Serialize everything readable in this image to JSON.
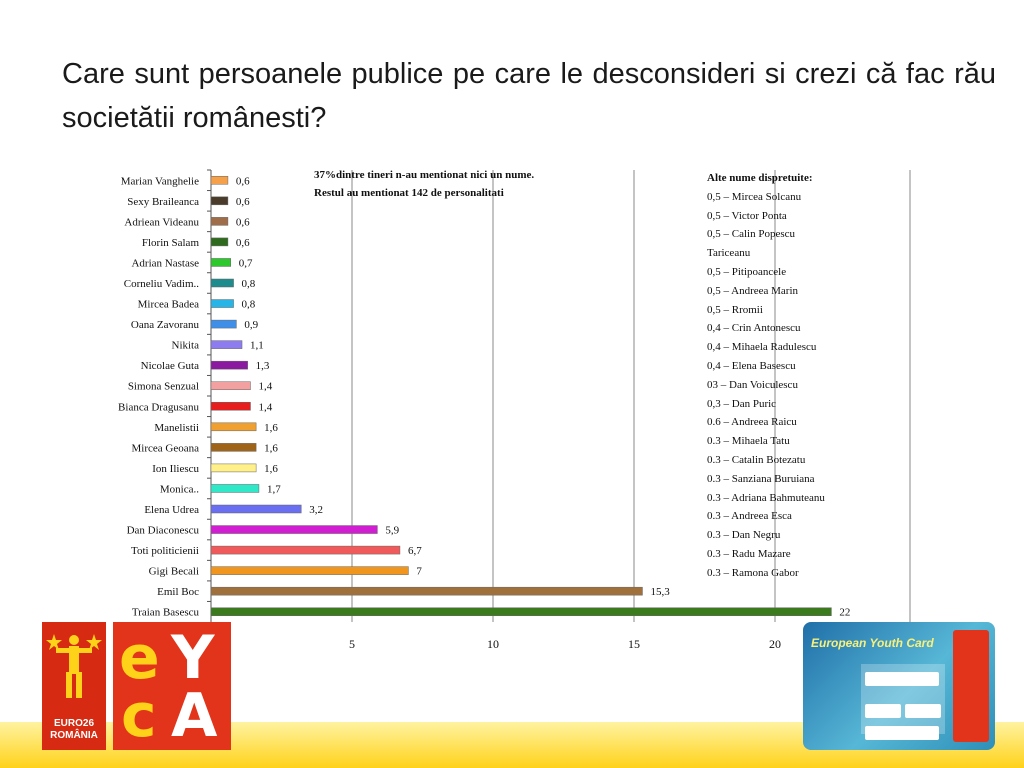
{
  "title": "Care sunt persoanele publice pe care le desconsideri si crezi că fac rău societătii românesti?",
  "chart_data": {
    "type": "bar",
    "orientation": "horizontal",
    "categories": [
      "Marian Vanghelie",
      "Sexy Braileanca",
      "Adriean Videanu",
      "Florin Salam",
      "Adrian Nastase",
      "Corneliu Vadim..",
      "Mircea Badea",
      "Oana Zavoranu",
      "Nikita",
      "Nicolae Guta",
      "Simona Senzual",
      "Bianca Dragusanu",
      "Manelistii",
      "Mircea Geoana",
      "Ion Iliescu",
      "Monica..",
      "Elena Udrea",
      "Dan Diaconescu",
      "Toti politicienii",
      "Gigi Becali",
      "Emil Boc",
      "Traian Basescu"
    ],
    "values": [
      0.6,
      0.6,
      0.6,
      0.6,
      0.7,
      0.8,
      0.8,
      0.9,
      1.1,
      1.3,
      1.4,
      1.4,
      1.6,
      1.6,
      1.6,
      1.7,
      3.2,
      5.9,
      6.7,
      7,
      15.3,
      22
    ],
    "value_labels": [
      "0,6",
      "0,6",
      "0,6",
      "0,6",
      "0,7",
      "0,8",
      "0,8",
      "0,9",
      "1,1",
      "1,3",
      "1,4",
      "1,4",
      "1,6",
      "1,6",
      "1,6",
      "1,7",
      "3,2",
      "5,9",
      "6,7",
      "7",
      "15,3",
      "22"
    ],
    "colors": [
      "#f5a04a",
      "#4b3b2a",
      "#a06d4a",
      "#2f6b1e",
      "#2cc82c",
      "#1e8c8c",
      "#27b4e6",
      "#3f8fe8",
      "#8c7cf0",
      "#8c1aa0",
      "#f2a0a0",
      "#e61e1e",
      "#f0a030",
      "#a06418",
      "#fff08a",
      "#2ee8c8",
      "#6a6ef0",
      "#d21ed2",
      "#f05a5a",
      "#f0961e",
      "#a0703c",
      "#3c7a1e"
    ],
    "xlim": [
      0,
      25
    ],
    "xticks": [
      "5",
      "10",
      "15",
      "20"
    ],
    "xtick_values": [
      5,
      10,
      15,
      20
    ],
    "grid": true,
    "notes": [
      "37%dintre tineri n-au mentionat nici un nume.",
      "Restul au mentionat 142 de personalitati"
    ]
  },
  "others": {
    "heading": "Alte nume dispretuite:",
    "items": [
      "0,5 – Mircea Solcanu",
      "0,5 – Victor Ponta",
      "0,5 – Calin Popescu",
      "Tariceanu",
      "0,5 – Pitipoancele",
      "0,5 – Andreea Marin",
      "0,5 – Rromii",
      "0,4 – Crin Antonescu",
      "0,4 – Mihaela Radulescu",
      "0,4 – Elena Basescu",
      "03 – Dan Voiculescu",
      "0,3 – Dan Puric",
      "0.6 – Andreea Raicu",
      "0.3 – Mihaela Tatu",
      "0.3 – Catalin Botezatu",
      "0.3 – Sanziana Buruiana",
      "0.3 – Adriana Bahmuteanu",
      "0.3 – Andreea Esca",
      "0.3 – Dan Negru",
      "0.3 – Radu Mazare",
      "0.3 – Ramona Gabor"
    ]
  },
  "footer": {
    "euro_logo_lines": [
      "EURO26",
      "ROMÂNIA"
    ],
    "eyca_letters": [
      "e",
      "Y",
      "c",
      "A"
    ],
    "card_title": "European Youth Card",
    "accent_colors": {
      "logo_red": "#e2341a",
      "logo_yellow": "#ffd21a",
      "band": "#ffd21a"
    }
  }
}
